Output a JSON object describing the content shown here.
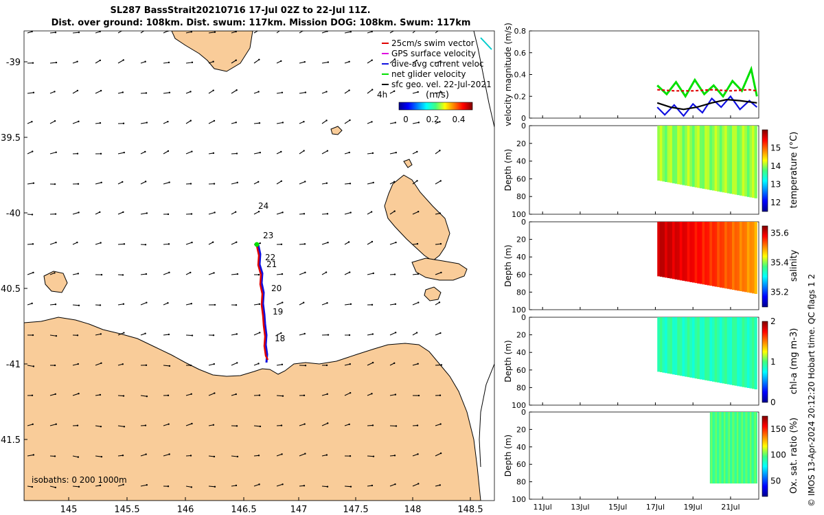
{
  "title": {
    "line1": "SL287 BassStrait20210716 17-Jul 02Z to 22-Jul 11Z.",
    "line2": "Dist. over ground: 108km. Dist. swum: 117km. Mission DOG: 108km. Swum: 117km"
  },
  "colors": {
    "land": "#f9cc99",
    "track_red": "#e00000",
    "track_blue": "#1010e0",
    "green": "#00e000",
    "black": "#000000"
  },
  "map": {
    "legend": [
      {
        "label": "25cm/s swim vector",
        "color": "#e00000"
      },
      {
        "label": "GPS surface velocity",
        "color": "#e000e0"
      },
      {
        "label": "dive-avg current veloc",
        "color": "#1010e0"
      },
      {
        "label": "net glider velocity",
        "color": "#00e000"
      },
      {
        "label": "sfc geo. vel. 22-Jul-2021",
        "color": "#000000"
      }
    ],
    "colorbar_label": "(m/s)",
    "colorbar_ticks": [
      "0",
      "0.2",
      "0.4"
    ],
    "extra_label": "4h",
    "isobaths": "isobaths: 0   200  1000m",
    "lon_ticks": [
      "145",
      "145.5",
      "146",
      "146.5",
      "147",
      "147.5",
      "148",
      "148.5"
    ],
    "lat_ticks": [
      "-39",
      "39.5",
      "-40",
      "40.5",
      "-41",
      "41.5"
    ],
    "day_labels": [
      "24",
      "23",
      "22",
      "21",
      "20",
      "19",
      "18"
    ]
  },
  "footer": "© IMOS 13-Apr-2024 20:12:20 Hobart time. QC flags 1  2",
  "chart_data": [
    {
      "type": "line",
      "ylabel": "velocity magnitude (m/s)",
      "ylim": [
        0,
        0.8
      ],
      "y_ticks": [
        "0",
        "0.2",
        "0.4",
        "0.6",
        "0.8"
      ],
      "x_ticks": [
        "11Jul",
        "13Jul",
        "15Jul",
        "17Jul",
        "19Jul",
        "21Jul"
      ],
      "series": [
        {
          "color": "#00e000",
          "x_days": [
            17.1,
            17.6,
            18.1,
            18.6,
            19.1,
            19.6,
            20.1,
            20.6,
            21.1,
            21.6,
            22.1,
            22.4
          ],
          "values": [
            0.3,
            0.22,
            0.33,
            0.2,
            0.35,
            0.22,
            0.3,
            0.2,
            0.34,
            0.25,
            0.45,
            0.2
          ]
        },
        {
          "color": "#e00000",
          "x_days": [
            17.1,
            18.0,
            19.0,
            20.0,
            21.0,
            22.0,
            22.4
          ],
          "values": [
            0.26,
            0.25,
            0.25,
            0.26,
            0.25,
            0.26,
            0.25
          ]
        },
        {
          "color": "#1010e0",
          "x_days": [
            17.1,
            17.5,
            18.0,
            18.5,
            19.0,
            19.5,
            20.0,
            20.5,
            21.0,
            21.5,
            22.0,
            22.4
          ],
          "values": [
            0.1,
            0.03,
            0.12,
            0.02,
            0.13,
            0.05,
            0.18,
            0.1,
            0.2,
            0.08,
            0.16,
            0.1
          ]
        },
        {
          "color": "#000000",
          "x_days": [
            17.1,
            17.8,
            18.5,
            19.2,
            20.0,
            20.8,
            21.5,
            22.4
          ],
          "values": [
            0.14,
            0.1,
            0.08,
            0.1,
            0.14,
            0.17,
            0.16,
            0.14
          ]
        }
      ]
    },
    {
      "type": "heatmap",
      "variable": "temperature",
      "ylabel": "Depth (m)",
      "clabel": "temperature (°C)",
      "ylim": [
        0,
        100
      ],
      "y_ticks": [
        "0",
        "20",
        "40",
        "60",
        "80",
        "100"
      ],
      "c_ticks": [
        "12",
        "13",
        "14",
        "15"
      ],
      "clim": [
        11.5,
        16
      ],
      "x_start": 17.1,
      "x_end": 22.4,
      "value": 14.0
    },
    {
      "type": "heatmap",
      "variable": "salinity",
      "ylabel": "Depth (m)",
      "clabel": "salinity",
      "ylim": [
        0,
        100
      ],
      "y_ticks": [
        "0",
        "20",
        "40",
        "60",
        "80",
        "100"
      ],
      "c_ticks": [
        "35.2",
        "35.4",
        "35.6"
      ],
      "clim": [
        35.1,
        35.65
      ],
      "x_start": 17.1,
      "x_end": 22.4,
      "value_start": 35.62,
      "value_end": 35.5
    },
    {
      "type": "heatmap",
      "variable": "chl-a",
      "ylabel": "Depth (m)",
      "clabel": "chl-a (mg m-3)",
      "ylim": [
        0,
        100
      ],
      "y_ticks": [
        "0",
        "20",
        "40",
        "60",
        "80",
        "100"
      ],
      "c_ticks": [
        "0",
        "1",
        "2"
      ],
      "clim": [
        0,
        2
      ],
      "x_start": 17.1,
      "x_end": 22.4,
      "value": 0.9
    },
    {
      "type": "heatmap",
      "variable": "oxygen",
      "ylabel": "Depth (m)",
      "clabel": "Ox. sat. ratio (%)",
      "ylim": [
        0,
        100
      ],
      "y_ticks": [
        "0",
        "20",
        "40",
        "60",
        "80",
        "100"
      ],
      "c_ticks": [
        "50",
        "100",
        "150"
      ],
      "clim": [
        20,
        175
      ],
      "x_start": 19.9,
      "x_end": 22.4,
      "value": 97,
      "x_ticks": [
        "11Jul",
        "13Jul",
        "15Jul",
        "17Jul",
        "19Jul",
        "21Jul"
      ]
    }
  ]
}
